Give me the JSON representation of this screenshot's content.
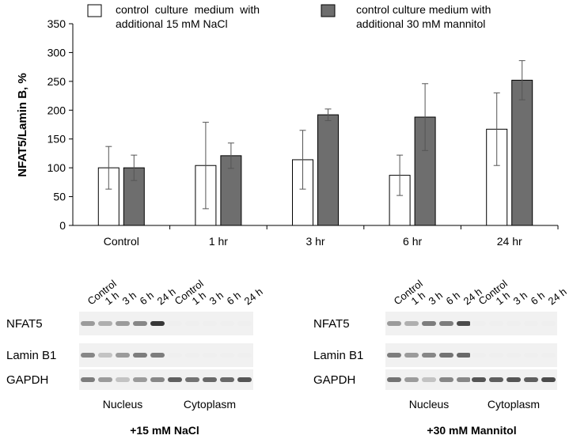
{
  "chart_data": {
    "type": "bar",
    "categories": [
      "Control",
      "1 hr",
      "3 hr",
      "6 hr",
      "24 hr"
    ],
    "series": [
      {
        "name": "control culture medium with additional 15 mM NaCl",
        "fill": "#ffffff",
        "values": [
          100,
          104,
          114,
          87,
          167
        ],
        "errors": [
          37,
          75,
          51,
          35,
          63
        ]
      },
      {
        "name": "control culture medium with additional 30 mM mannitol",
        "fill": "#6e6e6e",
        "values": [
          100,
          121,
          192,
          188,
          252
        ],
        "errors": [
          22,
          22,
          10,
          58,
          34
        ]
      }
    ],
    "ylabel": "NFAT5/Lamin B, %",
    "ylim": [
      0,
      350
    ],
    "yticks": [
      0,
      50,
      100,
      150,
      200,
      250,
      300,
      350
    ],
    "grid": false,
    "legend_position": "top"
  },
  "legend": {
    "nacl_line1": "control  culture  medium  with",
    "nacl_line2": "additional 15 mM NaCl",
    "mannitol_line1": "control culture medium with",
    "mannitol_line2": "additional 30 mM mannitol"
  },
  "blots": {
    "lane_labels": [
      "Control",
      "1 h",
      "3 h",
      "6 h",
      "24 h",
      "Control",
      "1 h",
      "3 h",
      "6 h",
      "24 h"
    ],
    "row_labels": [
      "NFAT5",
      "Lamin B1",
      "GAPDH"
    ],
    "nucleus_label": "Nucleus",
    "cytoplasm_label": "Cytoplasm",
    "panels": [
      {
        "title": "+15 mM NaCl",
        "nucleus_intensity": {
          "NFAT5": [
            0.45,
            0.35,
            0.45,
            0.55,
            0.95
          ],
          "Lamin B1": [
            0.55,
            0.25,
            0.45,
            0.6,
            0.6
          ],
          "GAPDH": [
            0.6,
            0.45,
            0.25,
            0.45,
            0.55
          ]
        },
        "cytoplasm_intensity": {
          "NFAT5": [
            0.03,
            0.03,
            0.03,
            0.03,
            0.03
          ],
          "Lamin B1": [
            0.03,
            0.03,
            0.03,
            0.03,
            0.03
          ],
          "GAPDH": [
            0.75,
            0.65,
            0.7,
            0.7,
            0.8
          ]
        }
      },
      {
        "title": "+30 mM Mannitol",
        "nucleus_intensity": {
          "NFAT5": [
            0.45,
            0.35,
            0.6,
            0.6,
            0.85
          ],
          "Lamin B1": [
            0.6,
            0.45,
            0.55,
            0.65,
            0.7
          ],
          "GAPDH": [
            0.65,
            0.45,
            0.25,
            0.55,
            0.55
          ]
        },
        "cytoplasm_intensity": {
          "NFAT5": [
            0.03,
            0.03,
            0.03,
            0.03,
            0.03
          ],
          "Lamin B1": [
            0.03,
            0.03,
            0.03,
            0.03,
            0.03
          ],
          "GAPDH": [
            0.8,
            0.75,
            0.8,
            0.75,
            0.85
          ]
        }
      }
    ]
  }
}
